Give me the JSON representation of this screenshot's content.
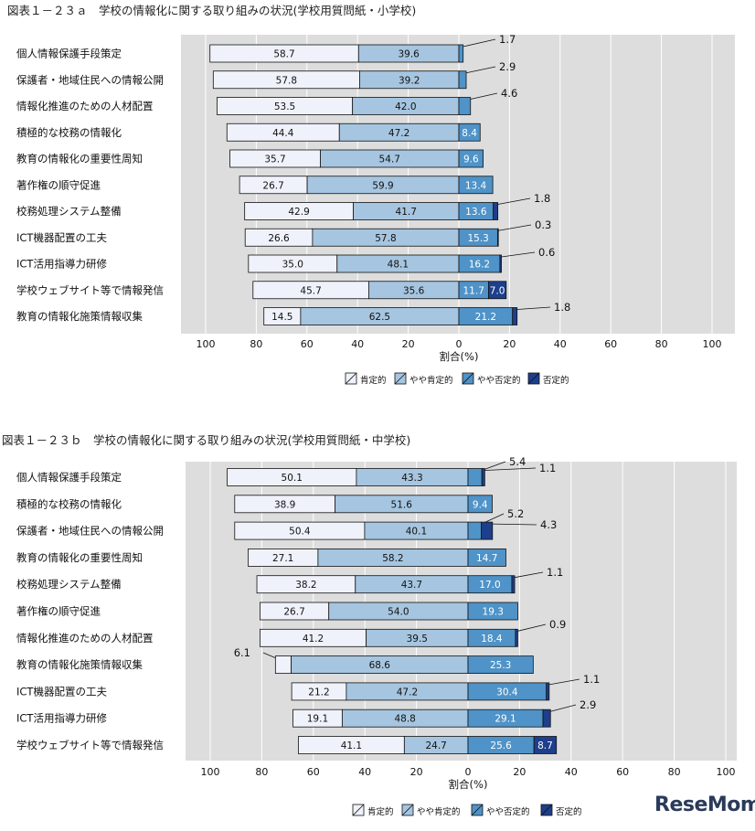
{
  "chart_data": [
    {
      "type": "bar",
      "title": "図表１－２３ａ　学校の情報化に関する取り組みの状況(学校用質問紙・小学校)",
      "xlabel": "割合(%)",
      "xlim": [
        -100,
        100
      ],
      "x_ticks": [
        "100",
        "80",
        "60",
        "40",
        "20",
        "0",
        "20",
        "40",
        "60",
        "80",
        "100"
      ],
      "grid": true,
      "legend_position": "bottom",
      "categories": [
        "個人情報保護手段策定",
        "保護者・地域住民への情報公開",
        "情報化推進のための人材配置",
        "積極的な校務の情報化",
        "教育の情報化の重要性周知",
        "著作権の順守促進",
        "校務処理システム整備",
        "ICT機器配置の工夫",
        "ICT活用指導力研修",
        "学校ウェブサイト等で情報発信",
        "教育の情報化施策情報収集"
      ],
      "series": [
        {
          "name": "肯定的",
          "values": [
            58.7,
            57.8,
            53.5,
            44.4,
            35.7,
            26.7,
            42.9,
            26.6,
            35.0,
            45.7,
            14.5
          ]
        },
        {
          "name": "やや肯定的",
          "values": [
            39.6,
            39.2,
            42.0,
            47.2,
            54.7,
            59.9,
            41.7,
            57.8,
            48.1,
            35.6,
            62.5
          ]
        },
        {
          "name": "やや否定的",
          "values": [
            1.7,
            2.9,
            4.6,
            8.4,
            9.6,
            13.4,
            13.6,
            15.3,
            16.2,
            11.7,
            21.2
          ]
        },
        {
          "name": "否定的",
          "values": [
            0,
            0,
            0,
            0,
            0,
            0,
            1.8,
            0.3,
            0.6,
            7.0,
            1.8
          ]
        }
      ],
      "labels": [
        [
          "58.7",
          "39.6",
          "1.7",
          ""
        ],
        [
          "57.8",
          "39.2",
          "2.9",
          ""
        ],
        [
          "53.5",
          "42.0",
          "4.6",
          ""
        ],
        [
          "44.4",
          "47.2",
          "8.4",
          ""
        ],
        [
          "35.7",
          "54.7",
          "9.6",
          ""
        ],
        [
          "26.7",
          "59.9",
          "13.4",
          ""
        ],
        [
          "42.9",
          "41.7",
          "13.6",
          "1.8"
        ],
        [
          "26.6",
          "57.8",
          "15.3",
          "0.3"
        ],
        [
          "35.0",
          "48.1",
          "16.2",
          "0.6"
        ],
        [
          "45.7",
          "35.6",
          "11.7",
          "7.0"
        ],
        [
          "14.5",
          "62.5",
          "21.2",
          "1.8"
        ]
      ]
    },
    {
      "type": "bar",
      "title": "図表１－２３ｂ　学校の情報化に関する取り組みの状況(学校用質問紙・中学校)",
      "xlabel": "割合(%)",
      "xlim": [
        -100,
        100
      ],
      "x_ticks": [
        "100",
        "80",
        "60",
        "40",
        "20",
        "0",
        "20",
        "40",
        "60",
        "80",
        "100"
      ],
      "grid": true,
      "legend_position": "bottom",
      "categories": [
        "個人情報保護手段策定",
        "積極的な校務の情報化",
        "保護者・地域住民への情報公開",
        "教育の情報化の重要性周知",
        "校務処理システム整備",
        "著作権の順守促進",
        "情報化推進のための人材配置",
        "教育の情報化施策情報収集",
        "ICT機器配置の工夫",
        "ICT活用指導力研修",
        "学校ウェブサイト等で情報発信"
      ],
      "series": [
        {
          "name": "肯定的",
          "values": [
            50.1,
            38.9,
            50.4,
            27.1,
            38.2,
            26.7,
            41.2,
            6.1,
            21.2,
            19.1,
            41.1
          ]
        },
        {
          "name": "やや肯定的",
          "values": [
            43.3,
            51.6,
            40.1,
            58.2,
            43.7,
            54.0,
            39.5,
            68.6,
            47.2,
            48.8,
            24.7
          ]
        },
        {
          "name": "やや否定的",
          "values": [
            5.4,
            9.4,
            5.2,
            14.7,
            17.0,
            19.3,
            18.4,
            25.3,
            30.4,
            29.1,
            25.6
          ]
        },
        {
          "name": "否定的",
          "values": [
            1.1,
            0,
            4.3,
            0,
            1.1,
            0,
            0.9,
            0,
            1.1,
            2.9,
            8.7
          ]
        }
      ],
      "labels": [
        [
          "50.1",
          "43.3",
          "5.4",
          "1.1"
        ],
        [
          "38.9",
          "51.6",
          "9.4",
          ""
        ],
        [
          "50.4",
          "40.1",
          "5.2",
          "4.3"
        ],
        [
          "27.1",
          "58.2",
          "14.7",
          ""
        ],
        [
          "38.2",
          "43.7",
          "17.0",
          "1.1"
        ],
        [
          "26.7",
          "54.0",
          "19.3",
          ""
        ],
        [
          "41.2",
          "39.5",
          "18.4",
          "0.9"
        ],
        [
          "6.1",
          "68.6",
          "25.3",
          ""
        ],
        [
          "21.2",
          "47.2",
          "30.4",
          "1.1"
        ],
        [
          "19.1",
          "48.8",
          "29.1",
          "2.9"
        ],
        [
          "41.1",
          "24.7",
          "25.6",
          "8.7"
        ]
      ]
    }
  ],
  "colors": {
    "positive": "#f0f2fb",
    "somewhat_positive": "#a6c5e0",
    "somewhat_negative": "#4f93c8",
    "negative": "#1d3f8c",
    "plot_bg": "#dddddd",
    "grid": "#ffffff"
  },
  "logo_text": "ReseMom"
}
